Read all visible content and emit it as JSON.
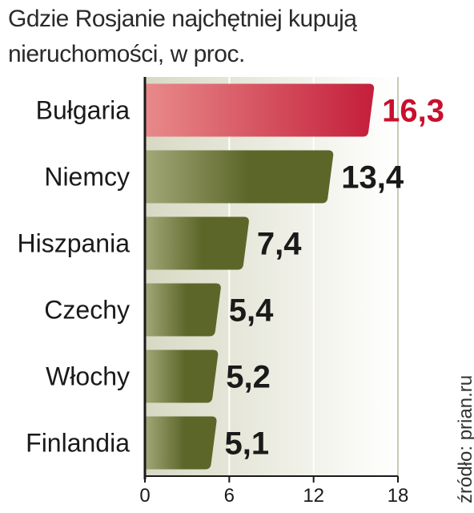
{
  "chart_data": {
    "type": "bar",
    "orientation": "horizontal",
    "title": "Gdzie Rosjanie najchętniej kupują nieruchomości, w proc.",
    "categories": [
      "Bułgaria",
      "Niemcy",
      "Hiszpania",
      "Czechy",
      "Włochy",
      "Finlandia"
    ],
    "values": [
      16.3,
      13.4,
      7.4,
      5.4,
      5.2,
      5.1
    ],
    "value_labels": [
      "16,3",
      "13,4",
      "7,4",
      "5,4",
      "5,2",
      "5,1"
    ],
    "xlim": [
      0,
      18
    ],
    "xticks": [
      0,
      6,
      12,
      18
    ],
    "tick_labels": [
      "0",
      "6",
      "12",
      "18"
    ],
    "grid": true,
    "highlight_index": 0,
    "colors": {
      "highlight": "#c41e3a",
      "highlight_light": "#e88a8a",
      "bar": "#5c6629",
      "bar_light": "#a3a878",
      "highlight_label": "#c8102e",
      "label": "#1a1a1a",
      "grid_band": "#d8d9c4"
    }
  },
  "source": "źródło: prian.ru"
}
